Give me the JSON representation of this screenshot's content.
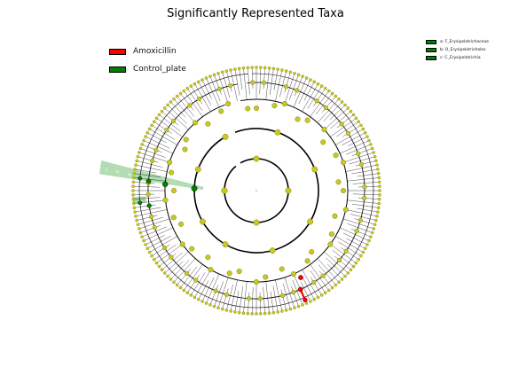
{
  "title": "Significantly Represented Taxa",
  "legend": [
    {
      "label": "Amoxicillin",
      "color": "#ff0000"
    },
    {
      "label": "Control_plate",
      "color": "#008000"
    }
  ],
  "taxa_legend": [
    {
      "label": "a: F_Erysipelotrichaceae",
      "color": "#008000"
    },
    {
      "label": "b: O_Erysipelotrichales",
      "color": "#008000"
    },
    {
      "label": "c: C_Erysipelotrichia",
      "color": "#008000"
    }
  ],
  "clade_letters": [
    "c",
    "b",
    "a"
  ],
  "colors": {
    "node": "#c8c81e",
    "node_edge": "#6a6a10",
    "highlight_green": "#008000",
    "highlight_red": "#ff0000",
    "shade_green": "#7fc47f"
  }
}
